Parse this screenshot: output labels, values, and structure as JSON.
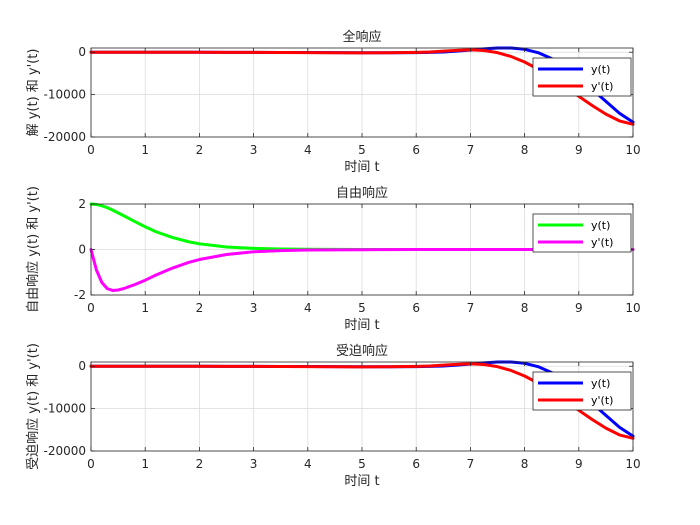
{
  "chart_data": [
    {
      "type": "line",
      "title": "全响应",
      "xlabel": "时间 t",
      "ylabel": "解 y(t) 和 y'(t)",
      "xlim": [
        0,
        10
      ],
      "ylim": [
        -20000,
        1000
      ],
      "xticks": [
        "0",
        "1",
        "2",
        "3",
        "4",
        "5",
        "6",
        "7",
        "8",
        "9",
        "10"
      ],
      "yticks": [
        {
          "value": 0,
          "label": "0"
        },
        {
          "value": -10000,
          "label": "-10000"
        },
        {
          "value": -20000,
          "label": "-20000"
        }
      ],
      "grid": true,
      "legend_position": "top-right",
      "x": [
        0,
        0.5,
        1,
        1.5,
        2,
        2.5,
        3,
        3.5,
        4,
        4.5,
        5,
        5.5,
        6,
        6.25,
        6.5,
        6.75,
        7,
        7.25,
        7.5,
        7.75,
        8,
        8.25,
        8.5,
        8.75,
        9,
        9.25,
        9.5,
        9.75,
        10
      ],
      "series": [
        {
          "name": "y(t)",
          "color": "#0000ff",
          "values": [
            0,
            -1,
            -3,
            -7,
            -12,
            -20,
            -32,
            -48,
            -70,
            -95,
            -120,
            -130,
            -100,
            -40,
            60,
            250,
            530,
            800,
            1000,
            1050,
            700,
            -100,
            -1500,
            -3500,
            -6000,
            -8800,
            -11600,
            -14400,
            -16500
          ]
        },
        {
          "name": "y'(t)",
          "color": "#ff0000",
          "values": [
            0,
            -2,
            -5,
            -10,
            -18,
            -30,
            -45,
            -70,
            -95,
            -125,
            -145,
            -130,
            -40,
            60,
            250,
            450,
            600,
            400,
            -100,
            -1000,
            -2300,
            -4000,
            -6000,
            -8200,
            -10400,
            -12600,
            -14600,
            -16200,
            -17000
          ]
        }
      ]
    },
    {
      "type": "line",
      "title": "自由响应",
      "xlabel": "时间 t",
      "ylabel": "自由响应 y(t) 和 y'(t)",
      "xlim": [
        0,
        10
      ],
      "ylim": [
        -2,
        2
      ],
      "xticks": [
        "0",
        "1",
        "2",
        "3",
        "4",
        "5",
        "6",
        "7",
        "8",
        "9",
        "10"
      ],
      "yticks": [
        {
          "value": 2,
          "label": "2"
        },
        {
          "value": 0,
          "label": "0"
        },
        {
          "value": -2,
          "label": "-2"
        }
      ],
      "grid": true,
      "legend_position": "top-right",
      "x": [
        0,
        0.1,
        0.2,
        0.3,
        0.4,
        0.5,
        0.6,
        0.8,
        1,
        1.2,
        1.5,
        1.8,
        2,
        2.5,
        3,
        3.5,
        4,
        5,
        6,
        7,
        8,
        9,
        10
      ],
      "series": [
        {
          "name": "y(t)",
          "color": "#00ff00",
          "values": [
            2,
            1.98,
            1.92,
            1.84,
            1.73,
            1.61,
            1.49,
            1.24,
            1.0,
            0.78,
            0.53,
            0.34,
            0.25,
            0.11,
            0.05,
            0.02,
            0.01,
            0,
            0,
            0,
            0,
            0,
            0
          ]
        },
        {
          "name": "y'(t)",
          "color": "#ff00ff",
          "values": [
            0,
            -0.9,
            -1.45,
            -1.72,
            -1.8,
            -1.78,
            -1.72,
            -1.55,
            -1.35,
            -1.12,
            -0.82,
            -0.57,
            -0.44,
            -0.22,
            -0.1,
            -0.05,
            -0.02,
            -0.01,
            0,
            0,
            0,
            0,
            0
          ]
        }
      ]
    },
    {
      "type": "line",
      "title": "受迫响应",
      "xlabel": "时间 t",
      "ylabel": "受迫响应 y(t) 和 y'(t)",
      "xlim": [
        0,
        10
      ],
      "ylim": [
        -20000,
        1000
      ],
      "xticks": [
        "0",
        "1",
        "2",
        "3",
        "4",
        "5",
        "6",
        "7",
        "8",
        "9",
        "10"
      ],
      "yticks": [
        {
          "value": 0,
          "label": "0"
        },
        {
          "value": -10000,
          "label": "-10000"
        },
        {
          "value": -20000,
          "label": "-20000"
        }
      ],
      "grid": true,
      "legend_position": "top-right",
      "x": [
        0,
        0.5,
        1,
        1.5,
        2,
        2.5,
        3,
        3.5,
        4,
        4.5,
        5,
        5.5,
        6,
        6.25,
        6.5,
        6.75,
        7,
        7.25,
        7.5,
        7.75,
        8,
        8.25,
        8.5,
        8.75,
        9,
        9.25,
        9.5,
        9.75,
        10
      ],
      "series": [
        {
          "name": "y(t)",
          "color": "#0000ff",
          "values": [
            0,
            -1,
            -3,
            -7,
            -12,
            -20,
            -32,
            -48,
            -70,
            -95,
            -120,
            -130,
            -100,
            -40,
            60,
            250,
            530,
            800,
            1000,
            1050,
            700,
            -100,
            -1500,
            -3500,
            -6000,
            -8800,
            -11600,
            -14400,
            -16500
          ]
        },
        {
          "name": "y'(t)",
          "color": "#ff0000",
          "values": [
            0,
            -2,
            -5,
            -10,
            -18,
            -30,
            -45,
            -70,
            -95,
            -125,
            -145,
            -130,
            -40,
            60,
            250,
            450,
            600,
            400,
            -100,
            -1000,
            -2300,
            -4000,
            -6000,
            -8200,
            -10400,
            -12600,
            -14600,
            -16200,
            -17000
          ]
        }
      ]
    }
  ]
}
